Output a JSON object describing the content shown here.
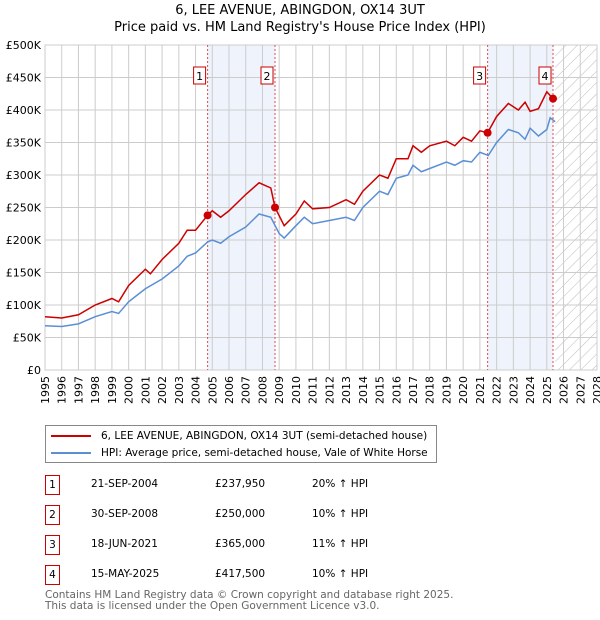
{
  "title": "6, LEE AVENUE, ABINGDON, OX14 3UT",
  "subtitle": "Price paid vs. HM Land Registry's House Price Index (HPI)",
  "chart_data": {
    "type": "line",
    "title": "6, LEE AVENUE, ABINGDON, OX14 3UT",
    "subtitle": "Price paid vs. HM Land Registry's House Price Index (HPI)",
    "xlim": [
      1995,
      2028
    ],
    "ylim": [
      0,
      500000
    ],
    "x_ticks": [
      "1995",
      "1996",
      "1997",
      "1998",
      "1999",
      "2000",
      "2001",
      "2002",
      "2003",
      "2004",
      "2005",
      "2006",
      "2007",
      "2008",
      "2009",
      "2010",
      "2011",
      "2012",
      "2013",
      "2014",
      "2015",
      "2016",
      "2017",
      "2018",
      "2019",
      "2020",
      "2021",
      "2022",
      "2023",
      "2024",
      "2025",
      "2026",
      "2027",
      "2028"
    ],
    "y_ticks": [
      {
        "v": 0,
        "label": "£0"
      },
      {
        "v": 50000,
        "label": "£50K"
      },
      {
        "v": 100000,
        "label": "£100K"
      },
      {
        "v": 150000,
        "label": "£150K"
      },
      {
        "v": 200000,
        "label": "£200K"
      },
      {
        "v": 250000,
        "label": "£250K"
      },
      {
        "v": 300000,
        "label": "£300K"
      },
      {
        "v": 350000,
        "label": "£350K"
      },
      {
        "v": 400000,
        "label": "£400K"
      },
      {
        "v": 450000,
        "label": "£450K"
      },
      {
        "v": 500000,
        "label": "£500K"
      }
    ],
    "grid": true,
    "series": [
      {
        "name": "6, LEE AVENUE, ABINGDON, OX14 3UT (semi-detached house)",
        "color": "#cc0000",
        "x": [
          1995,
          1996,
          1997,
          1998,
          1999,
          1999.4,
          2000,
          2001,
          2001.3,
          2002,
          2003,
          2003.5,
          2004,
          2004.72,
          2005,
          2005.5,
          2006,
          2007,
          2007.8,
          2008.5,
          2008.75,
          2009.3,
          2010,
          2010.5,
          2011,
          2012,
          2013,
          2013.5,
          2014,
          2015,
          2015.5,
          2016,
          2016.7,
          2017,
          2017.5,
          2018,
          2019,
          2019.5,
          2020,
          2020.5,
          2021,
          2021.46,
          2022,
          2022.7,
          2023.3,
          2023.7,
          2024,
          2024.5,
          2025,
          2025.37
        ],
        "y": [
          82000,
          80000,
          85000,
          100000,
          110000,
          105000,
          130000,
          155000,
          148000,
          170000,
          195000,
          215000,
          215000,
          237950,
          245000,
          235000,
          245000,
          270000,
          288000,
          280000,
          250000,
          222000,
          240000,
          260000,
          248000,
          250000,
          262000,
          255000,
          275000,
          300000,
          295000,
          325000,
          325000,
          345000,
          335000,
          345000,
          352000,
          345000,
          358000,
          352000,
          368000,
          365000,
          390000,
          410000,
          400000,
          412000,
          398000,
          402000,
          428000,
          417500
        ]
      },
      {
        "name": "HPI: Average price, semi-detached house, Vale of White Horse",
        "color": "#5b8fd4",
        "x": [
          1995,
          1996,
          1997,
          1998,
          1999,
          1999.4,
          2000,
          2000.5,
          2001,
          2002,
          2003,
          2003.5,
          2004,
          2004.72,
          2005,
          2005.5,
          2006,
          2007,
          2007.8,
          2008.5,
          2009,
          2009.3,
          2010,
          2010.5,
          2011,
          2012,
          2013,
          2013.5,
          2014,
          2015,
          2015.5,
          2016,
          2016.7,
          2017,
          2017.5,
          2018,
          2019,
          2019.5,
          2020,
          2020.5,
          2021,
          2021.5,
          2022,
          2022.7,
          2023.3,
          2023.7,
          2024,
          2024.5,
          2025,
          2025.2,
          2025.5
        ],
        "y": [
          68000,
          67000,
          71000,
          82000,
          90000,
          87000,
          105000,
          115000,
          125000,
          140000,
          160000,
          175000,
          180000,
          197000,
          200000,
          195000,
          205000,
          220000,
          240000,
          235000,
          210000,
          203000,
          222000,
          235000,
          225000,
          230000,
          235000,
          230000,
          250000,
          275000,
          270000,
          295000,
          300000,
          315000,
          305000,
          310000,
          320000,
          315000,
          322000,
          320000,
          335000,
          330000,
          350000,
          370000,
          365000,
          355000,
          372000,
          360000,
          370000,
          388000,
          382000
        ]
      }
    ],
    "sales": [
      {
        "n": "1",
        "x": 2004.72,
        "y": 237950,
        "date": "21-SEP-2004",
        "price": "£237,950",
        "hpi": "20% ↑ HPI"
      },
      {
        "n": "2",
        "x": 2008.75,
        "y": 250000,
        "date": "30-SEP-2008",
        "price": "£250,000",
        "hpi": "10% ↑ HPI"
      },
      {
        "n": "3",
        "x": 2021.46,
        "y": 365000,
        "date": "18-JUN-2021",
        "price": "£365,000",
        "hpi": "11% ↑ HPI"
      },
      {
        "n": "4",
        "x": 2025.37,
        "y": 417500,
        "date": "15-MAY-2025",
        "price": "£417,500",
        "hpi": "10% ↑ HPI"
      }
    ],
    "shaded_ranges": [
      [
        2004.72,
        2008.75
      ],
      [
        2021.46,
        2025.37
      ]
    ],
    "forecast_hatch_from": 2025.5
  },
  "footer": [
    "Contains HM Land Registry data © Crown copyright and database right 2025.",
    "This data is licensed under the Open Government Licence v3.0."
  ]
}
